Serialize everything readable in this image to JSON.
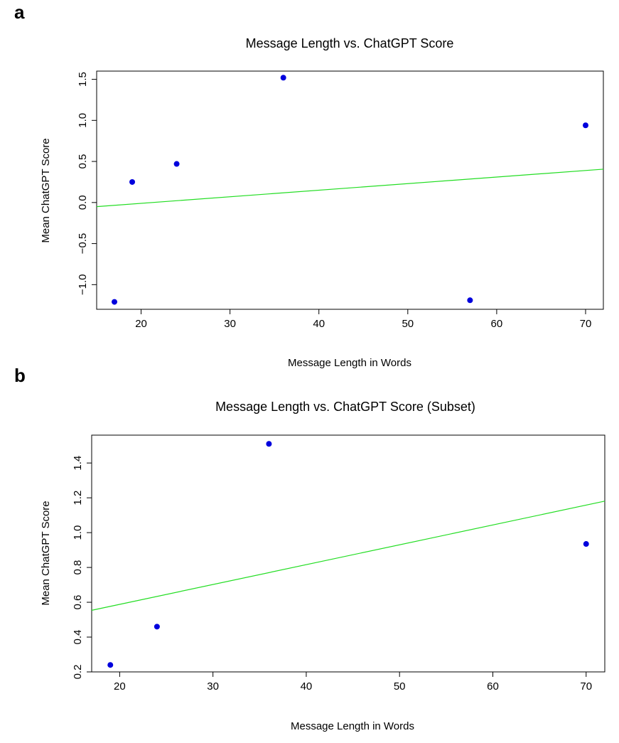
{
  "chart_data": [
    {
      "panel": "a",
      "type": "scatter",
      "title": "Message Length vs. ChatGPT Score",
      "xlabel": "Message Length in Words",
      "ylabel": "Mean ChatGPT Score",
      "xlim": [
        15,
        72
      ],
      "ylim": [
        -1.3,
        1.6
      ],
      "xticks": [
        20,
        30,
        40,
        50,
        60,
        70
      ],
      "yticks": [
        -1.0,
        -0.5,
        0.0,
        0.5,
        1.0,
        1.5
      ],
      "ytick_labels": [
        "−1.0",
        "−0.5",
        "0.0",
        "0.5",
        "1.0",
        "1.5"
      ],
      "points": [
        {
          "x": 17,
          "y": -1.21
        },
        {
          "x": 19,
          "y": 0.25
        },
        {
          "x": 24,
          "y": 0.47
        },
        {
          "x": 36,
          "y": 1.52
        },
        {
          "x": 57,
          "y": -1.19
        },
        {
          "x": 70,
          "y": 0.94
        }
      ],
      "fit_line": {
        "intercept": -0.17,
        "slope": 0.008
      },
      "colors": {
        "points": "#0000dd",
        "line": "#22dd22"
      }
    },
    {
      "panel": "b",
      "type": "scatter",
      "title": "Message Length vs. ChatGPT Score (Subset)",
      "xlabel": "Message Length in Words",
      "ylabel": "Mean ChatGPT Score",
      "xlim": [
        17,
        72
      ],
      "ylim": [
        0.2,
        1.56
      ],
      "xticks": [
        20,
        30,
        40,
        50,
        60,
        70
      ],
      "yticks": [
        0.2,
        0.4,
        0.6,
        0.8,
        1.0,
        1.2,
        1.4
      ],
      "ytick_labels": [
        "0.2",
        "0.4",
        "0.6",
        "0.8",
        "1.0",
        "1.2",
        "1.4"
      ],
      "points": [
        {
          "x": 19,
          "y": 0.24
        },
        {
          "x": 24,
          "y": 0.46
        },
        {
          "x": 36,
          "y": 1.51
        },
        {
          "x": 70,
          "y": 0.935
        }
      ],
      "fit_line": {
        "intercept": 0.36,
        "slope": 0.0114
      },
      "colors": {
        "points": "#0000dd",
        "line": "#22dd22"
      }
    }
  ]
}
